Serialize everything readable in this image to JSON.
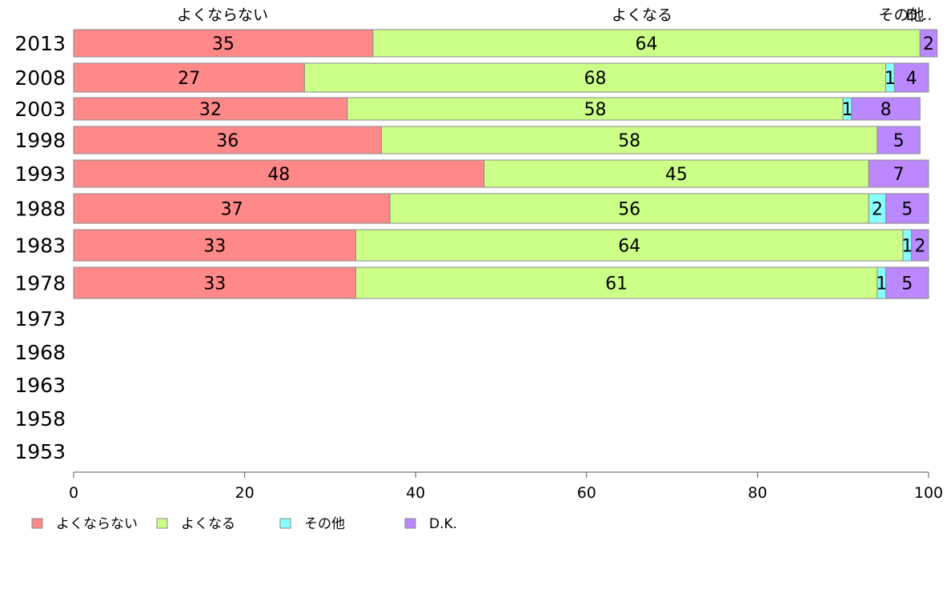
{
  "chart_data": {
    "type": "bar",
    "orientation": "horizontal",
    "stacked": true,
    "categories": [
      "2013",
      "2008",
      "2003",
      "1998",
      "1993",
      "1988",
      "1983",
      "1978",
      "1973",
      "1968",
      "1963",
      "1958",
      "1953"
    ],
    "series": [
      {
        "name": "よくならない",
        "color": "#ff8888",
        "values": [
          35,
          27,
          32,
          36,
          48,
          37,
          33,
          33,
          null,
          null,
          null,
          null,
          null
        ]
      },
      {
        "name": "よくなる",
        "color": "#ccff88",
        "values": [
          64,
          68,
          58,
          58,
          45,
          56,
          64,
          61,
          null,
          null,
          null,
          null,
          null
        ]
      },
      {
        "name": "その他",
        "color": "#88ffff",
        "values": [
          0,
          1,
          1,
          0,
          0,
          2,
          1,
          1,
          null,
          null,
          null,
          null,
          null
        ]
      },
      {
        "name": "D.K.",
        "color": "#bb88ff",
        "values": [
          2,
          4,
          8,
          5,
          7,
          5,
          2,
          5,
          null,
          null,
          null,
          null,
          null
        ]
      }
    ],
    "top_labels": [
      "よくならない",
      "よくなる",
      "その他",
      "D..."
    ],
    "xlim": [
      0,
      100
    ],
    "xticks": [
      "0",
      "20",
      "40",
      "60",
      "80",
      "100"
    ],
    "title": "",
    "xlabel": "",
    "ylabel": "",
    "legend_position": "bottom-left",
    "grid": false
  }
}
